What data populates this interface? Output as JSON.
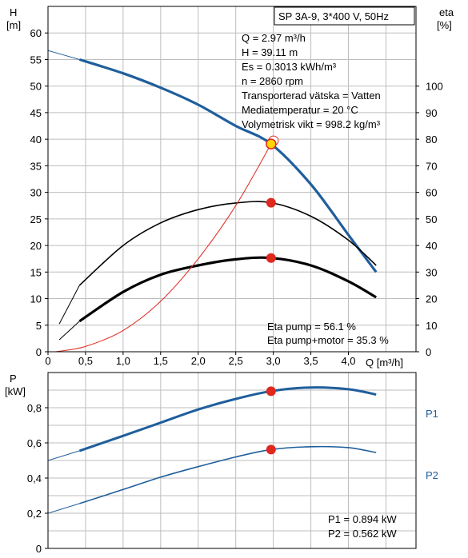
{
  "chart_data": [
    {
      "type": "line",
      "title": "SP 3A-9, 3*400 V, 50Hz",
      "xlabel": "Q [m³/h]",
      "ylabel_left": [
        "H",
        "[m]"
      ],
      "ylabel_right": [
        "eta",
        "[%]"
      ],
      "xlim": [
        0,
        4.9
      ],
      "ylim_left": [
        0,
        65
      ],
      "ylim_right": [
        0,
        130
      ],
      "x_ticks": [
        "0",
        "0,5",
        "1,0",
        "1,5",
        "2,0",
        "2,5",
        "3,0",
        "3,5",
        "4,0"
      ],
      "x_tick_values": [
        0,
        0.5,
        1.0,
        1.5,
        2.0,
        2.5,
        3.0,
        3.5,
        4.0
      ],
      "y_ticks_left": [
        "0",
        "5",
        "10",
        "15",
        "20",
        "25",
        "30",
        "35",
        "40",
        "45",
        "50",
        "55",
        "60"
      ],
      "y_ticks_right": [
        "0",
        "10",
        "20",
        "30",
        "40",
        "50",
        "60",
        "70",
        "80",
        "90",
        "100"
      ],
      "info_lines": [
        "Q = 2.97 m³/h",
        "H = 39.11 m",
        "Es = 0.3013 kWh/m³",
        "n = 2860 rpm",
        "Transporterad vätska = Vatten",
        "Mediatemperatur = 20 °C",
        "Volymetrisk vikt = 998.2 kg/m³"
      ],
      "efficiency_lines": [
        "Eta pump = 56.1 %",
        "Eta pump+motor = 35.3 %"
      ],
      "series": [
        {
          "axis": "left",
          "color": "#1f5e9c",
          "x": [
            0,
            0.42,
            1.0,
            1.5,
            2.0,
            2.5,
            2.97,
            3.5,
            4.0,
            4.37
          ],
          "y": [
            56.7,
            55,
            52.4,
            49.7,
            46.5,
            42.5,
            39.11,
            31.5,
            22,
            15
          ],
          "values": [
            56.7,
            55,
            52.4,
            49.7,
            46.5,
            42.5,
            39.11,
            31.5,
            22,
            15
          ]
        },
        {
          "axis": "right",
          "color": "#000000",
          "x": [
            0.15,
            0.42,
            1.0,
            1.5,
            2.0,
            2.5,
            2.97,
            3.5,
            4.0,
            4.37
          ],
          "y": [
            10.5,
            25,
            40,
            48.5,
            53.5,
            56,
            56.1,
            51,
            42,
            32.5
          ],
          "values": [
            10.5,
            25,
            40,
            48.5,
            53.5,
            56,
            56.1,
            51,
            42,
            32.5
          ]
        },
        {
          "axis": "right",
          "color": "#000000",
          "x": [
            0.15,
            0.42,
            1.0,
            1.5,
            2.0,
            2.5,
            2.97,
            3.5,
            4.0,
            4.37
          ],
          "y": [
            4.5,
            11.5,
            22.5,
            29,
            32.5,
            34.8,
            35.3,
            32.5,
            26.5,
            20.5
          ],
          "values": [
            4.5,
            11.5,
            22.5,
            29,
            32.5,
            34.8,
            35.3,
            32.5,
            26.5,
            20.5
          ]
        },
        {
          "axis": "left",
          "color": "#e0281e",
          "x": [
            0.1,
            0.5,
            1.0,
            1.5,
            2.0,
            2.5,
            2.97
          ],
          "y": [
            0,
            1,
            4,
            9.5,
            17.5,
            27.5,
            39.11
          ],
          "values": [
            0,
            1,
            4,
            9.5,
            17.5,
            27.5,
            39.11
          ]
        }
      ],
      "duty_points": [
        {
          "x": 2.97,
          "y": 39.11,
          "axis": "left",
          "color": "#ffd700"
        },
        {
          "x": 2.97,
          "y": 56.1,
          "axis": "right",
          "color": "#e0281e"
        },
        {
          "x": 2.97,
          "y": 35.3,
          "axis": "right",
          "color": "#e0281e"
        }
      ]
    },
    {
      "type": "line",
      "ylabel": [
        "P",
        "[kW]"
      ],
      "xlim": [
        0,
        4.9
      ],
      "ylim": [
        0,
        1.0
      ],
      "y_ticks": [
        "0",
        "0,2",
        "0,4",
        "0,6",
        "0,8"
      ],
      "y_tick_values": [
        0,
        0.2,
        0.4,
        0.6,
        0.8
      ],
      "readout_lines": [
        "P1 = 0.894 kW",
        "P2 = 0.562 kW"
      ],
      "series": [
        {
          "name": "P1",
          "color": "#1f5e9c",
          "x": [
            0,
            0.42,
            1.0,
            1.5,
            2.0,
            2.5,
            2.97,
            3.5,
            4.0,
            4.37
          ],
          "y": [
            0.5,
            0.555,
            0.64,
            0.715,
            0.79,
            0.85,
            0.894,
            0.915,
            0.905,
            0.875
          ],
          "values": [
            0.5,
            0.555,
            0.64,
            0.715,
            0.79,
            0.85,
            0.894,
            0.915,
            0.905,
            0.875
          ]
        },
        {
          "name": "P2",
          "color": "#1f5e9c",
          "x": [
            0,
            0.42,
            1.0,
            1.5,
            2.0,
            2.5,
            2.97,
            3.5,
            4.0,
            4.37
          ],
          "y": [
            0.2,
            0.255,
            0.335,
            0.405,
            0.465,
            0.52,
            0.562,
            0.578,
            0.573,
            0.545
          ],
          "values": [
            0.2,
            0.255,
            0.335,
            0.405,
            0.465,
            0.52,
            0.562,
            0.578,
            0.573,
            0.545
          ]
        }
      ],
      "duty_points": [
        {
          "x": 2.97,
          "y": 0.894,
          "color": "#e0281e"
        },
        {
          "x": 2.97,
          "y": 0.562,
          "color": "#e0281e"
        }
      ]
    }
  ]
}
